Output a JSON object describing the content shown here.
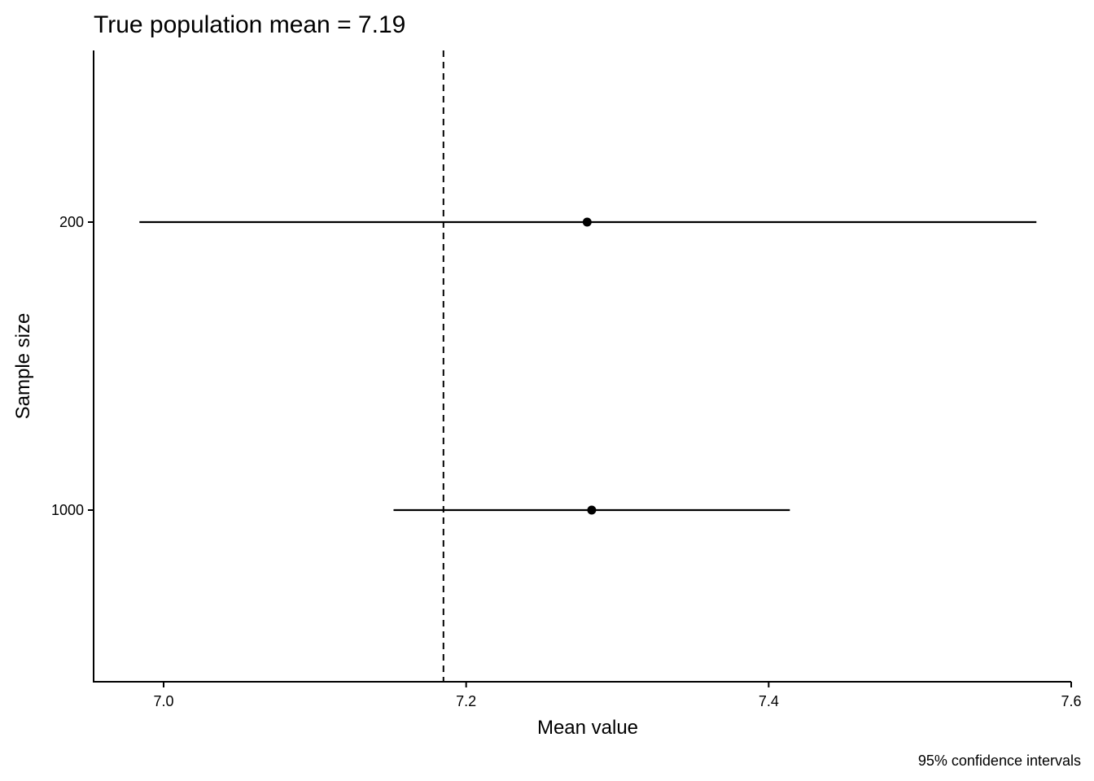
{
  "chart_data": {
    "type": "scatter",
    "subtype": "point-range (horizontal error bars)",
    "title": "True population mean = 7.19",
    "xlabel": "Mean value",
    "ylabel": "Sample size",
    "caption": "95% confidence intervals",
    "xlim": [
      6.954,
      7.6
    ],
    "x_ticks": [
      7.0,
      7.2,
      7.4,
      7.6
    ],
    "x_tick_labels": [
      "7.0",
      "7.2",
      "7.4",
      "7.6"
    ],
    "categories": [
      "200",
      "1000"
    ],
    "points": [
      {
        "category": "200",
        "mean": 7.28,
        "lower": 6.984,
        "upper": 7.577
      },
      {
        "category": "1000",
        "mean": 7.283,
        "lower": 7.152,
        "upper": 7.414
      }
    ],
    "reference_line": {
      "value": 7.185,
      "style": "dashed"
    },
    "grid": false,
    "colors": {
      "ink": "#000000",
      "background": "#ffffff"
    }
  }
}
